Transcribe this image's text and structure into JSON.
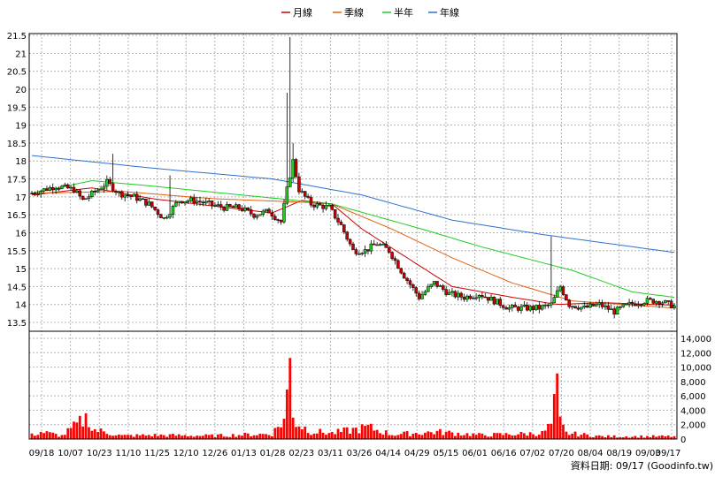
{
  "chart_data": {
    "type": "candlestick",
    "legend": {
      "placement": "top",
      "items": [
        {
          "label": "月線",
          "color": "#cc0000"
        },
        {
          "label": "季線",
          "color": "#e06010"
        },
        {
          "label": "半年",
          "color": "#22cc22"
        },
        {
          "label": "年線",
          "color": "#3070d0"
        }
      ]
    },
    "price_axis": {
      "ylim": [
        13.5,
        21.5
      ],
      "ticks": [
        "13.5",
        "14",
        "14.5",
        "15",
        "15.5",
        "16",
        "16.5",
        "17",
        "17.5",
        "18",
        "18.5",
        "19",
        "19.5",
        "20",
        "20.5",
        "21",
        "21.5"
      ]
    },
    "volume_axis": {
      "ylim": [
        0,
        14000
      ],
      "ticks": [
        "0",
        "2,000",
        "4,000",
        "6,000",
        "8,000",
        "10,000",
        "12,000",
        "14,000"
      ]
    },
    "x_tick_labels": [
      "09/18",
      "10/07",
      "10/23",
      "11/10",
      "11/25",
      "12/10",
      "12/26",
      "01/13",
      "01/28",
      "02/23",
      "03/11",
      "03/26",
      "04/14",
      "04/29",
      "05/15",
      "06/01",
      "06/16",
      "07/02",
      "07/20",
      "08/04",
      "08/19",
      "09/03",
      "09/17"
    ],
    "grid": true,
    "up_color": "#22cc22",
    "down_color": "#cc0000",
    "volume_color": "#ff0000",
    "price_anchors": [
      [
        0,
        17.1
      ],
      [
        8,
        17.3
      ],
      [
        14,
        17.2
      ],
      [
        17,
        16.9
      ],
      [
        22,
        17.2
      ],
      [
        25,
        17.4
      ],
      [
        29,
        17.1
      ],
      [
        34,
        17.0
      ],
      [
        39,
        16.8
      ],
      [
        44,
        16.4
      ],
      [
        49,
        16.9
      ],
      [
        54,
        16.9
      ],
      [
        59,
        16.8
      ],
      [
        64,
        16.7
      ],
      [
        69,
        16.7
      ],
      [
        74,
        16.5
      ],
      [
        79,
        16.6
      ],
      [
        83,
        16.3
      ],
      [
        85,
        17.2
      ],
      [
        87,
        18.0
      ],
      [
        89,
        17.2
      ],
      [
        93,
        16.8
      ],
      [
        99,
        16.7
      ],
      [
        103,
        16.2
      ],
      [
        107,
        15.5
      ],
      [
        111,
        15.5
      ],
      [
        115,
        15.7
      ],
      [
        119,
        15.5
      ],
      [
        124,
        14.8
      ],
      [
        129,
        14.2
      ],
      [
        134,
        14.6
      ],
      [
        139,
        14.3
      ],
      [
        144,
        14.2
      ],
      [
        149,
        14.3
      ],
      [
        154,
        14.1
      ],
      [
        159,
        13.9
      ],
      [
        164,
        13.9
      ],
      [
        169,
        13.9
      ],
      [
        173,
        14.0
      ],
      [
        176,
        14.5
      ],
      [
        179,
        14.0
      ],
      [
        184,
        13.9
      ],
      [
        189,
        14.0
      ],
      [
        194,
        13.8
      ],
      [
        199,
        14.0
      ],
      [
        204,
        14.1
      ],
      [
        209,
        14.1
      ],
      [
        214,
        13.95
      ]
    ],
    "spikes": [
      {
        "i": 85,
        "high": 19.9
      },
      {
        "i": 86,
        "high": 21.45
      },
      {
        "i": 87,
        "high": 18.5
      },
      {
        "i": 46,
        "high": 17.6
      },
      {
        "i": 173,
        "high": 15.9
      },
      {
        "i": 27,
        "high": 18.2
      }
    ],
    "volume_anchors": [
      [
        0,
        600
      ],
      [
        3,
        1100
      ],
      [
        10,
        500
      ],
      [
        19,
        3500
      ],
      [
        20,
        1500
      ],
      [
        30,
        500
      ],
      [
        40,
        600
      ],
      [
        60,
        500
      ],
      [
        80,
        800
      ],
      [
        84,
        3000
      ],
      [
        85,
        6500
      ],
      [
        86,
        12000
      ],
      [
        87,
        4500
      ],
      [
        88,
        2500
      ],
      [
        93,
        1200
      ],
      [
        100,
        900
      ],
      [
        108,
        1500
      ],
      [
        112,
        1800
      ],
      [
        120,
        700
      ],
      [
        135,
        1100
      ],
      [
        150,
        600
      ],
      [
        170,
        900
      ],
      [
        173,
        2200
      ],
      [
        175,
        7500
      ],
      [
        176,
        2500
      ],
      [
        178,
        900
      ],
      [
        190,
        400
      ],
      [
        214,
        400
      ]
    ],
    "ma_lines": {
      "月線": [
        [
          0,
          17.05
        ],
        [
          20,
          17.25
        ],
        [
          40,
          16.95
        ],
        [
          60,
          16.75
        ],
        [
          80,
          16.55
        ],
        [
          90,
          16.9
        ],
        [
          100,
          16.8
        ],
        [
          110,
          16.1
        ],
        [
          125,
          15.3
        ],
        [
          140,
          14.5
        ],
        [
          160,
          14.2
        ],
        [
          175,
          14.0
        ],
        [
          190,
          14.05
        ],
        [
          214,
          13.98
        ]
      ],
      "季線": [
        [
          0,
          17.1
        ],
        [
          30,
          17.15
        ],
        [
          60,
          16.95
        ],
        [
          90,
          16.85
        ],
        [
          100,
          16.8
        ],
        [
          120,
          16.1
        ],
        [
          140,
          15.3
        ],
        [
          160,
          14.6
        ],
        [
          180,
          14.1
        ],
        [
          214,
          13.9
        ]
      ],
      "半年": [
        [
          0,
          17.1
        ],
        [
          20,
          17.45
        ],
        [
          40,
          17.3
        ],
        [
          70,
          17.05
        ],
        [
          100,
          16.8
        ],
        [
          130,
          16.1
        ],
        [
          150,
          15.6
        ],
        [
          180,
          14.95
        ],
        [
          200,
          14.35
        ],
        [
          214,
          14.2
        ]
      ],
      "年線": [
        [
          0,
          18.15
        ],
        [
          40,
          17.8
        ],
        [
          80,
          17.5
        ],
        [
          110,
          17.05
        ],
        [
          140,
          16.35
        ],
        [
          170,
          15.95
        ],
        [
          214,
          15.45
        ]
      ]
    }
  },
  "credit": "資料日期: 09/17  (Goodinfo.tw)"
}
